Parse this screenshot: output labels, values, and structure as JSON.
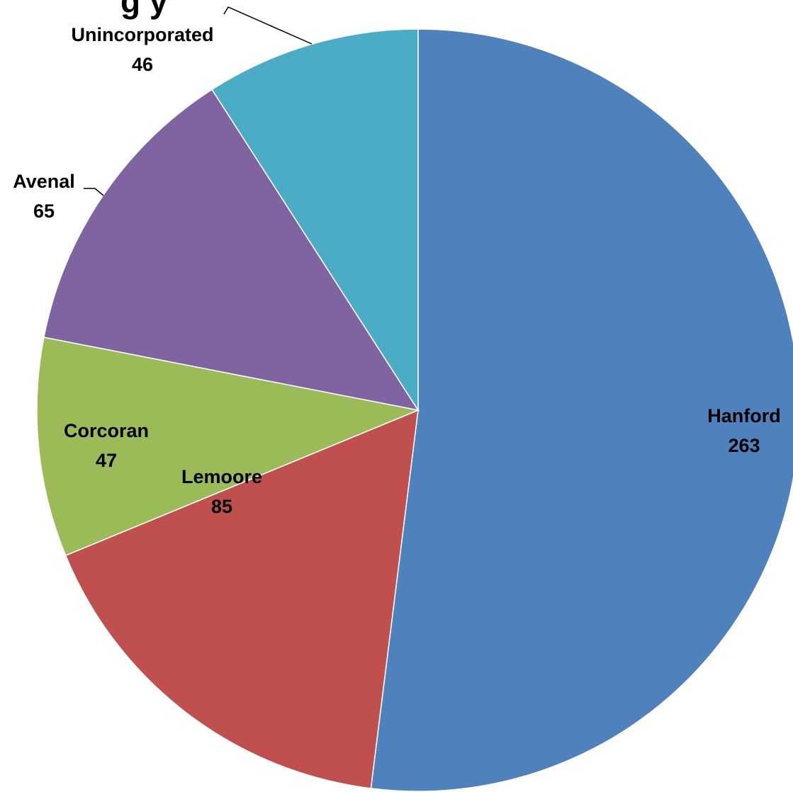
{
  "chart_data": {
    "type": "pie",
    "title_visible_fragment": "g  y",
    "slices": [
      {
        "category": "Hanford",
        "value": 263,
        "color": "#4F81BD"
      },
      {
        "category": "Lemoore",
        "value": 85,
        "color": "#C0504D"
      },
      {
        "category": "Corcoran",
        "value": 47,
        "color": "#9BBB59"
      },
      {
        "category": "Avenal",
        "value": 65,
        "color": "#8064A2"
      },
      {
        "category": "Unincorporated",
        "value": 46,
        "color": "#4BACC6"
      }
    ],
    "legend": "none",
    "data_labels": "category and value"
  }
}
